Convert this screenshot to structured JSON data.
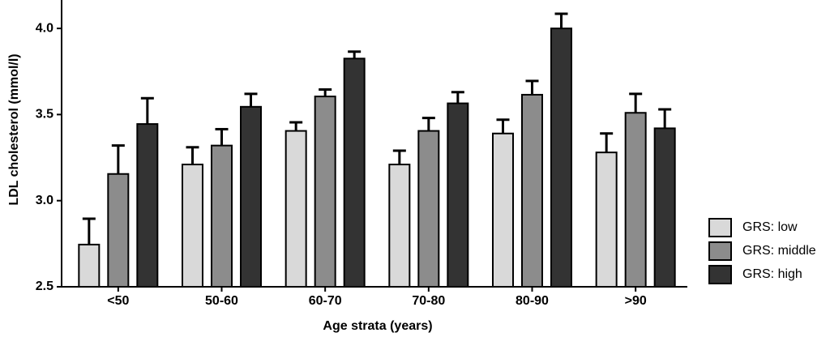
{
  "chart_data": {
    "type": "bar",
    "y_label": "LDL cholesterol (mmol/l)",
    "x_label": "Age strata (years)",
    "categories": [
      "<50",
      "50-60",
      "60-70",
      "70-80",
      "80-90",
      ">90"
    ],
    "series": [
      {
        "name": "GRS: low",
        "color": "#d9d9d9",
        "values": [
          2.745,
          3.21,
          3.405,
          3.21,
          3.39,
          3.28
        ],
        "errors": [
          0.15,
          0.1,
          0.05,
          0.08,
          0.08,
          0.11
        ]
      },
      {
        "name": "GRS: middle",
        "color": "#8c8c8c",
        "values": [
          3.155,
          3.32,
          3.605,
          3.405,
          3.615,
          3.51
        ],
        "errors": [
          0.165,
          0.095,
          0.04,
          0.075,
          0.08,
          0.11
        ]
      },
      {
        "name": "GRS: high",
        "color": "#333333",
        "values": [
          3.445,
          3.545,
          3.825,
          3.565,
          4.0,
          3.42
        ],
        "errors": [
          0.15,
          0.075,
          0.04,
          0.065,
          0.085,
          0.11
        ]
      }
    ],
    "ylim": [
      2.5,
      4.165
    ],
    "yticks": [
      2.5,
      {
        "value": 3,
        "label": "3.0"
      },
      3.5,
      {
        "value": 4,
        "label": "4.0"
      }
    ],
    "grid": false
  }
}
